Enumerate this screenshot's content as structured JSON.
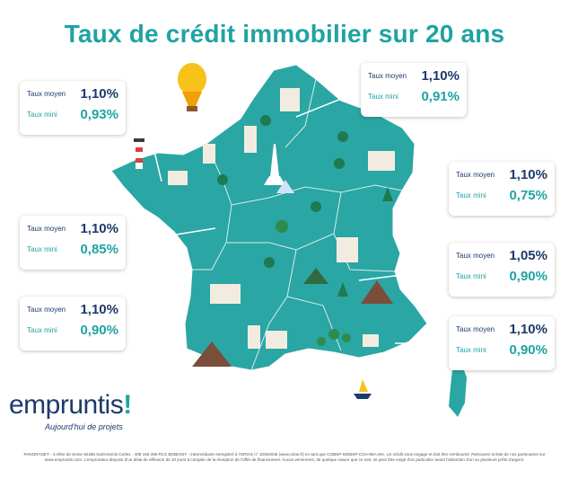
{
  "title": "Taux de crédit immobilier sur 20 ans",
  "colors": {
    "teal": "#1fa3a3",
    "navy": "#1d3a6b",
    "map": "#2aa6a4"
  },
  "cards": [
    {
      "id": "nord",
      "avg_label": "Taux moyen",
      "avg": "1,10%",
      "min_label": "Taux mini",
      "min": "0,91%"
    },
    {
      "id": "bretagne",
      "avg_label": "Taux moyen",
      "avg": "1,10%",
      "min_label": "Taux mini",
      "min": "0,93%"
    },
    {
      "id": "est",
      "avg_label": "Taux moyen",
      "avg": "1,10%",
      "min_label": "Taux mini",
      "min": "0,75%"
    },
    {
      "id": "ouest",
      "avg_label": "Taux moyen",
      "avg": "1,10%",
      "min_label": "Taux mini",
      "min": "0,85%"
    },
    {
      "id": "rhone-alpes",
      "avg_label": "Taux moyen",
      "avg": "1,05%",
      "min_label": "Taux mini",
      "min": "0,90%"
    },
    {
      "id": "sud-ouest",
      "avg_label": "Taux moyen",
      "avg": "1,10%",
      "min_label": "Taux mini",
      "min": "0,90%"
    },
    {
      "id": "sud-est",
      "avg_label": "Taux moyen",
      "avg": "1,10%",
      "min_label": "Taux mini",
      "min": "0,90%"
    }
  ],
  "logo": {
    "word": "empruntis",
    "bang": "!",
    "tagline": "Aujourd'hui de projets"
  },
  "footer": "PANORANET - 4 Allée de Seine 92285 Saint-Denis Cedex - 408 156 395 RCS BOBIGNY - intermédiaire enregistré à l'ORIAS n° 10054036 (www.orias.fr) en tant que COBSP-MOBSP-COA-MIA-MA. Un crédit vous engage et doit être remboursé. Retrouvez la liste de nos partenaires sur www.empruntis.com. L'emprunteur dispose d'un délai de réflexion de 10 jours à compter de la réception de l'offre de financement. Aucun versement, de quelque nature que ce soit, ne peut être exigé d'un particulier avant l'obtention d'un ou plusieurs prêts d'argent."
}
